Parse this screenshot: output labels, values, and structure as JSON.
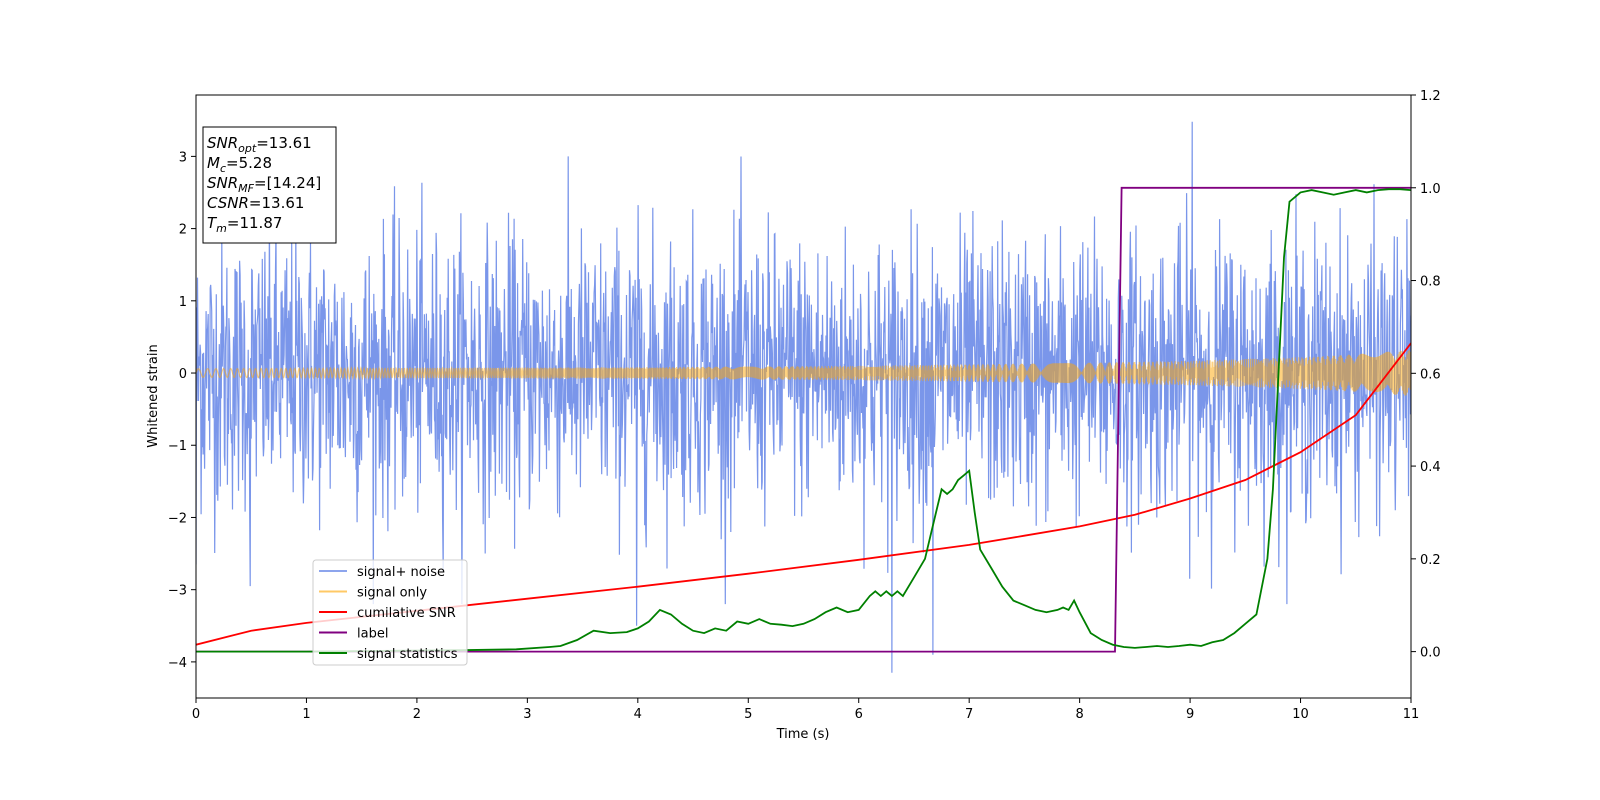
{
  "chart_data": {
    "type": "line",
    "xlabel": "Time (s)",
    "ylabel": "Whitened strain",
    "xlim": [
      0,
      11
    ],
    "ylim": [
      -4.5,
      3.85
    ],
    "y2lim": [
      -0.1,
      1.2
    ],
    "grid": false,
    "legend_position": "lower-left",
    "x_ticks": [
      0,
      1,
      2,
      3,
      4,
      5,
      6,
      7,
      8,
      9,
      10,
      11
    ],
    "y_ticks": [
      -4,
      -3,
      -2,
      -1,
      0,
      1,
      2,
      3
    ],
    "y2_ticks": [
      0.0,
      0.2,
      0.4,
      0.6,
      0.8,
      1.0,
      1.2
    ],
    "y2_tick_labels": [
      "0.0",
      "0.2",
      "0.4",
      "0.6",
      "0.8",
      "1.0",
      "1.2"
    ],
    "annotation_lines": [
      {
        "sym": "SNR",
        "sub": "opt",
        "text": "=13.61"
      },
      {
        "sym": "M",
        "sub": "c",
        "text": "=5.28"
      },
      {
        "sym": "SNR",
        "sub": "MF",
        "text": "=[14.24]"
      },
      {
        "sym": "CSNR",
        "sub": "",
        "text": "=13.61"
      },
      {
        "sym": "T",
        "sub": "m",
        "text": "=11.87"
      }
    ],
    "series": [
      {
        "name": "signal+ noise",
        "axis": "left",
        "color": "#4169e1",
        "alpha": 0.7,
        "description_values": {
          "envelope_typical": [
            -2.5,
            2.9
          ],
          "extreme_points": [
            [
              0.0,
              -2.65
            ],
            [
              0.49,
              -2.95
            ],
            [
              6.3,
              -4.15
            ],
            [
              6.67,
              -3.9
            ],
            [
              9.02,
              3.48
            ],
            [
              3.99,
              -3.5
            ]
          ]
        }
      },
      {
        "name": "signal only",
        "axis": "left",
        "color": "#ffa500",
        "alpha": 0.5,
        "amplitude": {
          "x": [
            0,
            2,
            4,
            6,
            8,
            9,
            10,
            10.5,
            11
          ],
          "amp": [
            0.06,
            0.07,
            0.08,
            0.1,
            0.14,
            0.17,
            0.22,
            0.26,
            0.32
          ]
        }
      },
      {
        "name": "cumilative SNR",
        "axis": "right",
        "color": "#ff0000",
        "x": [
          0,
          0.5,
          1,
          2,
          3,
          4,
          5,
          6,
          7,
          7.5,
          8,
          8.5,
          9,
          9.5,
          10,
          10.5,
          11
        ],
        "y": [
          0.015,
          0.045,
          0.062,
          0.088,
          0.114,
          0.14,
          0.168,
          0.198,
          0.23,
          0.25,
          0.27,
          0.295,
          0.33,
          0.37,
          0.43,
          0.51,
          0.665
        ]
      },
      {
        "name": "label",
        "axis": "right",
        "color": "#800080",
        "x": [
          0,
          8.32,
          8.38,
          11
        ],
        "y": [
          0,
          0,
          1,
          1
        ]
      },
      {
        "name": "signal statistics",
        "axis": "right",
        "color": "#008000",
        "x": [
          0,
          1.0,
          2.4,
          2.9,
          3.2,
          3.3,
          3.45,
          3.6,
          3.75,
          3.9,
          4.0,
          4.1,
          4.2,
          4.3,
          4.4,
          4.5,
          4.6,
          4.7,
          4.8,
          4.9,
          5.0,
          5.1,
          5.2,
          5.3,
          5.4,
          5.5,
          5.6,
          5.7,
          5.8,
          5.9,
          6.0,
          6.1,
          6.15,
          6.2,
          6.25,
          6.3,
          6.35,
          6.4,
          6.5,
          6.6,
          6.7,
          6.75,
          6.8,
          6.85,
          6.9,
          6.95,
          7.0,
          7.05,
          7.1,
          7.2,
          7.3,
          7.4,
          7.5,
          7.6,
          7.7,
          7.8,
          7.85,
          7.9,
          7.95,
          8.0,
          8.1,
          8.2,
          8.3,
          8.4,
          8.5,
          8.6,
          8.7,
          8.8,
          8.9,
          9.0,
          9.1,
          9.2,
          9.3,
          9.4,
          9.5,
          9.6,
          9.7,
          9.75,
          9.8,
          9.85,
          9.9,
          10.0,
          10.1,
          10.2,
          10.3,
          10.4,
          10.5,
          10.6,
          10.7,
          10.8,
          10.9,
          11.0
        ],
        "y": [
          0.0,
          0.0,
          0.003,
          0.005,
          0.01,
          0.012,
          0.025,
          0.045,
          0.04,
          0.042,
          0.05,
          0.065,
          0.09,
          0.08,
          0.06,
          0.045,
          0.04,
          0.05,
          0.045,
          0.065,
          0.06,
          0.07,
          0.06,
          0.058,
          0.055,
          0.06,
          0.07,
          0.085,
          0.095,
          0.085,
          0.09,
          0.12,
          0.13,
          0.12,
          0.13,
          0.12,
          0.13,
          0.12,
          0.16,
          0.2,
          0.3,
          0.35,
          0.34,
          0.35,
          0.37,
          0.38,
          0.39,
          0.3,
          0.22,
          0.18,
          0.14,
          0.11,
          0.1,
          0.09,
          0.085,
          0.09,
          0.095,
          0.09,
          0.11,
          0.085,
          0.04,
          0.025,
          0.015,
          0.01,
          0.008,
          0.01,
          0.012,
          0.01,
          0.012,
          0.015,
          0.012,
          0.02,
          0.025,
          0.04,
          0.06,
          0.08,
          0.2,
          0.35,
          0.6,
          0.85,
          0.97,
          0.99,
          0.995,
          0.99,
          0.985,
          0.99,
          0.995,
          0.99,
          0.995,
          0.997,
          0.997,
          0.995
        ]
      }
    ]
  },
  "legend": {
    "items": [
      {
        "label": "signal+ noise",
        "color": "#4169e1"
      },
      {
        "label": "signal only",
        "color": "#ffa500"
      },
      {
        "label": "cumilative SNR",
        "color": "#ff0000"
      },
      {
        "label": "label",
        "color": "#800080"
      },
      {
        "label": "signal statistics",
        "color": "#008000"
      }
    ]
  }
}
